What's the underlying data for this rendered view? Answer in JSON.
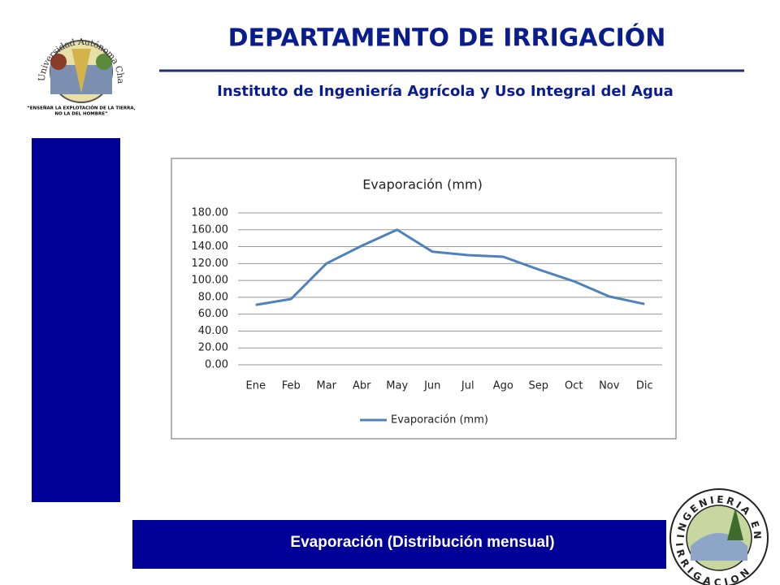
{
  "header": {
    "title": "DEPARTAMENTO DE IRRIGACIÓN",
    "subtitle": "Instituto de Ingeniería Agrícola y Uso Integral del Agua"
  },
  "left_logo": {
    "arc_text": "Universidad Autónoma Chapingo",
    "motto_1": "“ENSEÑAR LA EXPLOTACIÓN DE LA TIERRA,",
    "motto_2": "NO LA DEL HOMBRE”"
  },
  "right_logo": {
    "top_text": "INGENIERIA EN",
    "bottom_text": "IRRIGACION"
  },
  "chart_data": {
    "type": "line",
    "title": "Evaporación (mm)",
    "categories": [
      "Ene",
      "Feb",
      "Mar",
      "Abr",
      "May",
      "Jun",
      "Jul",
      "Ago",
      "Sep",
      "Oct",
      "Nov",
      "Dic"
    ],
    "series": [
      {
        "name": "Evaporación (mm)",
        "color": "#4f81bd",
        "values": [
          71,
          78,
          120,
          141,
          160,
          134,
          130,
          128,
          113,
          99,
          81,
          72
        ]
      }
    ],
    "ylim": [
      0,
      180
    ],
    "yticks": [
      {
        "value": 0,
        "label": "0.00"
      },
      {
        "value": 20,
        "label": "20.00"
      },
      {
        "value": 40,
        "label": "40.00"
      },
      {
        "value": 60,
        "label": "60.00"
      },
      {
        "value": 80,
        "label": "80.00"
      },
      {
        "value": 100,
        "label": "100.00"
      },
      {
        "value": 120,
        "label": "120.00"
      },
      {
        "value": 140,
        "label": "140.00"
      },
      {
        "value": 160,
        "label": "160.00"
      },
      {
        "value": 180,
        "label": "180.00"
      }
    ],
    "grid": true,
    "legend": "bottom"
  },
  "footer": {
    "caption": "Evaporación  (Distribución mensual)"
  }
}
